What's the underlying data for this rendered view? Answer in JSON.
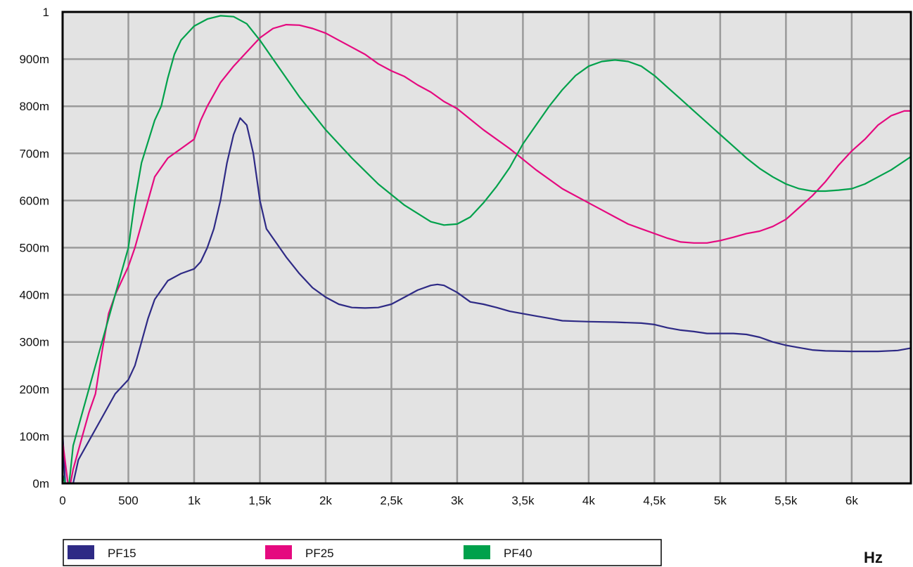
{
  "chart_data": {
    "type": "line",
    "title": "",
    "xlabel": "Hz",
    "ylabel": "",
    "xlim": [
      0,
      6450
    ],
    "ylim": [
      0,
      1.0
    ],
    "grid": true,
    "legend_position": "bottom",
    "x_ticks": [
      {
        "value": 0,
        "label": "0"
      },
      {
        "value": 500,
        "label": "500"
      },
      {
        "value": 1000,
        "label": "1k"
      },
      {
        "value": 1500,
        "label": "1,5k"
      },
      {
        "value": 2000,
        "label": "2k"
      },
      {
        "value": 2500,
        "label": "2,5k"
      },
      {
        "value": 3000,
        "label": "3k"
      },
      {
        "value": 3500,
        "label": "3,5k"
      },
      {
        "value": 4000,
        "label": "4k"
      },
      {
        "value": 4500,
        "label": "4,5k"
      },
      {
        "value": 5000,
        "label": "5k"
      },
      {
        "value": 5500,
        "label": "5,5k"
      },
      {
        "value": 6000,
        "label": "6k"
      }
    ],
    "y_ticks": [
      {
        "value": 0,
        "label": "0m"
      },
      {
        "value": 0.1,
        "label": "100m"
      },
      {
        "value": 0.2,
        "label": "200m"
      },
      {
        "value": 0.3,
        "label": "300m"
      },
      {
        "value": 0.4,
        "label": "400m"
      },
      {
        "value": 0.5,
        "label": "500m"
      },
      {
        "value": 0.6,
        "label": "600m"
      },
      {
        "value": 0.7,
        "label": "700m"
      },
      {
        "value": 0.8,
        "label": "800m"
      },
      {
        "value": 0.9,
        "label": "900m"
      },
      {
        "value": 1.0,
        "label": "1"
      }
    ],
    "series": [
      {
        "name": "PF15",
        "color": "#2e2a85",
        "points": [
          [
            0,
            0.11
          ],
          [
            20,
            0
          ],
          [
            60,
            0
          ],
          [
            80,
            0
          ],
          [
            120,
            0.05
          ],
          [
            200,
            0.09
          ],
          [
            300,
            0.14
          ],
          [
            400,
            0.19
          ],
          [
            500,
            0.22
          ],
          [
            550,
            0.25
          ],
          [
            600,
            0.3
          ],
          [
            650,
            0.35
          ],
          [
            700,
            0.39
          ],
          [
            800,
            0.43
          ],
          [
            900,
            0.445
          ],
          [
            1000,
            0.455
          ],
          [
            1050,
            0.47
          ],
          [
            1100,
            0.5
          ],
          [
            1150,
            0.54
          ],
          [
            1200,
            0.6
          ],
          [
            1250,
            0.68
          ],
          [
            1300,
            0.74
          ],
          [
            1350,
            0.775
          ],
          [
            1400,
            0.76
          ],
          [
            1450,
            0.7
          ],
          [
            1500,
            0.6
          ],
          [
            1550,
            0.54
          ],
          [
            1600,
            0.52
          ],
          [
            1700,
            0.48
          ],
          [
            1800,
            0.445
          ],
          [
            1900,
            0.415
          ],
          [
            2000,
            0.395
          ],
          [
            2100,
            0.38
          ],
          [
            2200,
            0.373
          ],
          [
            2300,
            0.372
          ],
          [
            2400,
            0.373
          ],
          [
            2500,
            0.38
          ],
          [
            2600,
            0.395
          ],
          [
            2700,
            0.41
          ],
          [
            2800,
            0.42
          ],
          [
            2850,
            0.422
          ],
          [
            2900,
            0.42
          ],
          [
            3000,
            0.405
          ],
          [
            3100,
            0.385
          ],
          [
            3200,
            0.38
          ],
          [
            3300,
            0.373
          ],
          [
            3400,
            0.365
          ],
          [
            3500,
            0.36
          ],
          [
            3600,
            0.355
          ],
          [
            3700,
            0.35
          ],
          [
            3800,
            0.345
          ],
          [
            3900,
            0.344
          ],
          [
            4000,
            0.343
          ],
          [
            4200,
            0.342
          ],
          [
            4400,
            0.34
          ],
          [
            4500,
            0.337
          ],
          [
            4600,
            0.33
          ],
          [
            4700,
            0.325
          ],
          [
            4800,
            0.322
          ],
          [
            4900,
            0.318
          ],
          [
            5000,
            0.318
          ],
          [
            5100,
            0.318
          ],
          [
            5200,
            0.316
          ],
          [
            5300,
            0.31
          ],
          [
            5400,
            0.3
          ],
          [
            5500,
            0.293
          ],
          [
            5600,
            0.288
          ],
          [
            5700,
            0.283
          ],
          [
            5800,
            0.281
          ],
          [
            6000,
            0.28
          ],
          [
            6200,
            0.28
          ],
          [
            6350,
            0.282
          ],
          [
            6450,
            0.287
          ]
        ]
      },
      {
        "name": "PF25",
        "color": "#e5097f",
        "points": [
          [
            0,
            0.09
          ],
          [
            40,
            0
          ],
          [
            60,
            0
          ],
          [
            80,
            0.03
          ],
          [
            150,
            0.1
          ],
          [
            200,
            0.15
          ],
          [
            250,
            0.19
          ],
          [
            300,
            0.28
          ],
          [
            350,
            0.36
          ],
          [
            400,
            0.4
          ],
          [
            450,
            0.43
          ],
          [
            500,
            0.46
          ],
          [
            550,
            0.5
          ],
          [
            600,
            0.55
          ],
          [
            650,
            0.6
          ],
          [
            700,
            0.65
          ],
          [
            750,
            0.67
          ],
          [
            800,
            0.69
          ],
          [
            900,
            0.71
          ],
          [
            1000,
            0.73
          ],
          [
            1050,
            0.77
          ],
          [
            1100,
            0.8
          ],
          [
            1200,
            0.85
          ],
          [
            1300,
            0.885
          ],
          [
            1400,
            0.915
          ],
          [
            1500,
            0.945
          ],
          [
            1600,
            0.965
          ],
          [
            1700,
            0.973
          ],
          [
            1800,
            0.972
          ],
          [
            1900,
            0.965
          ],
          [
            2000,
            0.955
          ],
          [
            2100,
            0.94
          ],
          [
            2200,
            0.925
          ],
          [
            2300,
            0.91
          ],
          [
            2400,
            0.89
          ],
          [
            2500,
            0.875
          ],
          [
            2600,
            0.863
          ],
          [
            2700,
            0.845
          ],
          [
            2800,
            0.83
          ],
          [
            2900,
            0.81
          ],
          [
            3000,
            0.795
          ],
          [
            3200,
            0.75
          ],
          [
            3400,
            0.71
          ],
          [
            3600,
            0.665
          ],
          [
            3800,
            0.625
          ],
          [
            4000,
            0.595
          ],
          [
            4100,
            0.58
          ],
          [
            4200,
            0.565
          ],
          [
            4300,
            0.55
          ],
          [
            4400,
            0.54
          ],
          [
            4500,
            0.53
          ],
          [
            4600,
            0.52
          ],
          [
            4700,
            0.512
          ],
          [
            4800,
            0.51
          ],
          [
            4900,
            0.51
          ],
          [
            5000,
            0.515
          ],
          [
            5100,
            0.522
          ],
          [
            5200,
            0.53
          ],
          [
            5300,
            0.535
          ],
          [
            5400,
            0.545
          ],
          [
            5500,
            0.56
          ],
          [
            5600,
            0.585
          ],
          [
            5700,
            0.61
          ],
          [
            5800,
            0.64
          ],
          [
            5900,
            0.675
          ],
          [
            6000,
            0.705
          ],
          [
            6100,
            0.73
          ],
          [
            6200,
            0.76
          ],
          [
            6300,
            0.78
          ],
          [
            6400,
            0.79
          ],
          [
            6450,
            0.79
          ]
        ]
      },
      {
        "name": "PF40",
        "color": "#00a14b",
        "points": [
          [
            0,
            0.02
          ],
          [
            20,
            0
          ],
          [
            50,
            0
          ],
          [
            80,
            0.08
          ],
          [
            150,
            0.15
          ],
          [
            250,
            0.25
          ],
          [
            350,
            0.35
          ],
          [
            450,
            0.45
          ],
          [
            500,
            0.5
          ],
          [
            550,
            0.6
          ],
          [
            600,
            0.68
          ],
          [
            700,
            0.77
          ],
          [
            750,
            0.8
          ],
          [
            800,
            0.86
          ],
          [
            850,
            0.91
          ],
          [
            900,
            0.94
          ],
          [
            1000,
            0.97
          ],
          [
            1100,
            0.985
          ],
          [
            1200,
            0.992
          ],
          [
            1300,
            0.99
          ],
          [
            1400,
            0.975
          ],
          [
            1500,
            0.94
          ],
          [
            1600,
            0.9
          ],
          [
            1800,
            0.82
          ],
          [
            2000,
            0.75
          ],
          [
            2200,
            0.69
          ],
          [
            2400,
            0.635
          ],
          [
            2600,
            0.59
          ],
          [
            2800,
            0.555
          ],
          [
            2900,
            0.548
          ],
          [
            3000,
            0.55
          ],
          [
            3100,
            0.565
          ],
          [
            3200,
            0.595
          ],
          [
            3300,
            0.63
          ],
          [
            3400,
            0.67
          ],
          [
            3500,
            0.72
          ],
          [
            3600,
            0.76
          ],
          [
            3700,
            0.8
          ],
          [
            3800,
            0.835
          ],
          [
            3900,
            0.865
          ],
          [
            4000,
            0.885
          ],
          [
            4100,
            0.895
          ],
          [
            4200,
            0.898
          ],
          [
            4300,
            0.895
          ],
          [
            4400,
            0.885
          ],
          [
            4500,
            0.865
          ],
          [
            4600,
            0.84
          ],
          [
            4700,
            0.815
          ],
          [
            4800,
            0.79
          ],
          [
            4900,
            0.765
          ],
          [
            5000,
            0.74
          ],
          [
            5100,
            0.715
          ],
          [
            5200,
            0.69
          ],
          [
            5300,
            0.668
          ],
          [
            5400,
            0.65
          ],
          [
            5500,
            0.635
          ],
          [
            5600,
            0.625
          ],
          [
            5700,
            0.62
          ],
          [
            5800,
            0.62
          ],
          [
            5900,
            0.622
          ],
          [
            6000,
            0.625
          ],
          [
            6100,
            0.635
          ],
          [
            6200,
            0.65
          ],
          [
            6300,
            0.665
          ],
          [
            6450,
            0.693
          ]
        ]
      }
    ]
  }
}
